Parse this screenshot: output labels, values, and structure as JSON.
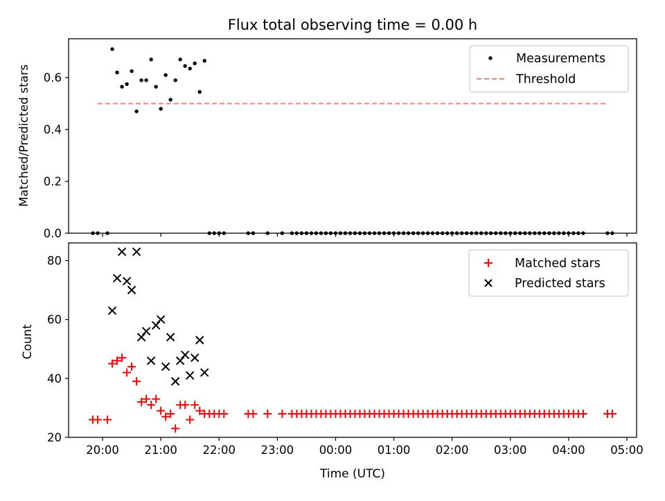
{
  "colors": {
    "measurement": "#000000",
    "threshold": "#ff7f7f",
    "matched": "#ff0000",
    "predicted": "#000000"
  },
  "chart_data": [
    {
      "type": "scatter",
      "title": "Flux total observing time = 0.00 h",
      "xlabel": "",
      "ylabel": "Matched/Predicted stars",
      "xlim": [
        "19:25",
        "05:10"
      ],
      "ylim": [
        0,
        0.75
      ],
      "yticks": [
        "0.0",
        "0.2",
        "0.4",
        "0.6"
      ],
      "legend": {
        "position": "top-right",
        "entries": [
          "Measurements",
          "Threshold"
        ]
      },
      "threshold": {
        "name": "Threshold",
        "value": 0.5,
        "x_start": "19:55",
        "x_end": "04:40"
      },
      "series": [
        {
          "name": "Measurements",
          "x": [
            "19:50",
            "19:55",
            "20:05",
            "20:10",
            "20:15",
            "20:20",
            "20:25",
            "20:30",
            "20:35",
            "20:40",
            "20:45",
            "20:50",
            "20:55",
            "21:00",
            "21:05",
            "21:10",
            "21:15",
            "21:20",
            "21:25",
            "21:30",
            "21:35",
            "21:40",
            "21:45",
            "21:50",
            "21:55",
            "22:00",
            "22:05",
            "22:30",
            "22:35",
            "22:50",
            "23:05",
            "23:15",
            "23:20",
            "23:25",
            "23:30",
            "23:35",
            "23:40",
            "23:45",
            "23:50",
            "23:55",
            "00:00",
            "00:05",
            "00:10",
            "00:15",
            "00:20",
            "00:25",
            "00:30",
            "00:35",
            "00:40",
            "00:45",
            "00:50",
            "00:55",
            "01:00",
            "01:05",
            "01:10",
            "01:15",
            "01:20",
            "01:25",
            "01:30",
            "01:35",
            "01:40",
            "01:45",
            "01:50",
            "01:55",
            "02:00",
            "02:05",
            "02:10",
            "02:15",
            "02:20",
            "02:25",
            "02:30",
            "02:35",
            "02:40",
            "02:45",
            "02:50",
            "02:55",
            "03:00",
            "03:05",
            "03:10",
            "03:15",
            "03:20",
            "03:25",
            "03:30",
            "03:35",
            "03:40",
            "03:45",
            "03:50",
            "03:55",
            "04:00",
            "04:05",
            "04:10",
            "04:15",
            "04:40",
            "04:45"
          ],
          "y": [
            0,
            0,
            0,
            0.71,
            0.62,
            0.565,
            0.575,
            0.625,
            0.47,
            0.59,
            0.59,
            0.67,
            0.565,
            0.48,
            0.61,
            0.515,
            0.59,
            0.67,
            0.645,
            0.635,
            0.655,
            0.545,
            0.665,
            0,
            0,
            0,
            0,
            0,
            0,
            0,
            0,
            0,
            0,
            0,
            0,
            0,
            0,
            0,
            0,
            0,
            0,
            0,
            0,
            0,
            0,
            0,
            0,
            0,
            0,
            0,
            0,
            0,
            0,
            0,
            0,
            0,
            0,
            0,
            0,
            0,
            0,
            0,
            0,
            0,
            0,
            0,
            0,
            0,
            0,
            0,
            0,
            0,
            0,
            0,
            0,
            0,
            0,
            0,
            0,
            0,
            0,
            0,
            0,
            0,
            0,
            0,
            0,
            0,
            0,
            0,
            0,
            0,
            0,
            0
          ]
        }
      ]
    },
    {
      "type": "scatter",
      "title": "",
      "xlabel": "Time (UTC)",
      "ylabel": "Count",
      "xlim": [
        "19:25",
        "05:10"
      ],
      "ylim": [
        20,
        86
      ],
      "xticks": [
        "20:00",
        "21:00",
        "22:00",
        "23:00",
        "00:00",
        "01:00",
        "02:00",
        "03:00",
        "04:00",
        "05:00"
      ],
      "yticks": [
        "20",
        "40",
        "60",
        "80"
      ],
      "legend": {
        "position": "top-right",
        "entries": [
          "Matched stars",
          "Predicted stars"
        ]
      },
      "series": [
        {
          "name": "Matched stars",
          "x": [
            "19:50",
            "19:55",
            "20:05",
            "20:10",
            "20:15",
            "20:20",
            "20:25",
            "20:30",
            "20:35",
            "20:40",
            "20:45",
            "20:50",
            "20:55",
            "21:00",
            "21:05",
            "21:10",
            "21:15",
            "21:20",
            "21:25",
            "21:30",
            "21:35",
            "21:40",
            "21:45",
            "21:50",
            "21:55",
            "22:00",
            "22:05",
            "22:30",
            "22:35",
            "22:50",
            "23:05",
            "23:15",
            "23:20",
            "23:25",
            "23:30",
            "23:35",
            "23:40",
            "23:45",
            "23:50",
            "23:55",
            "00:00",
            "00:05",
            "00:10",
            "00:15",
            "00:20",
            "00:25",
            "00:30",
            "00:35",
            "00:40",
            "00:45",
            "00:50",
            "00:55",
            "01:00",
            "01:05",
            "01:10",
            "01:15",
            "01:20",
            "01:25",
            "01:30",
            "01:35",
            "01:40",
            "01:45",
            "01:50",
            "01:55",
            "02:00",
            "02:05",
            "02:10",
            "02:15",
            "02:20",
            "02:25",
            "02:30",
            "02:35",
            "02:40",
            "02:45",
            "02:50",
            "02:55",
            "03:00",
            "03:05",
            "03:10",
            "03:15",
            "03:20",
            "03:25",
            "03:30",
            "03:35",
            "03:40",
            "03:45",
            "03:50",
            "03:55",
            "04:00",
            "04:05",
            "04:10",
            "04:15",
            "04:40",
            "04:45"
          ],
          "y": [
            26,
            26,
            26,
            45,
            46,
            47,
            42,
            44,
            39,
            32,
            33,
            31,
            33,
            29,
            27,
            28,
            23,
            31,
            31,
            26,
            31,
            29,
            28,
            28,
            28,
            28,
            28,
            28,
            28,
            28,
            28,
            28,
            28,
            28,
            28,
            28,
            28,
            28,
            28,
            28,
            28,
            28,
            28,
            28,
            28,
            28,
            28,
            28,
            28,
            28,
            28,
            28,
            28,
            28,
            28,
            28,
            28,
            28,
            28,
            28,
            28,
            28,
            28,
            28,
            28,
            28,
            28,
            28,
            28,
            28,
            28,
            28,
            28,
            28,
            28,
            28,
            28,
            28,
            28,
            28,
            28,
            28,
            28,
            28,
            28,
            28,
            28,
            28,
            28,
            28,
            28,
            28,
            28,
            28
          ]
        },
        {
          "name": "Predicted stars",
          "x": [
            "20:10",
            "20:15",
            "20:20",
            "20:25",
            "20:30",
            "20:35",
            "20:40",
            "20:45",
            "20:50",
            "20:55",
            "21:00",
            "21:05",
            "21:10",
            "21:15",
            "21:20",
            "21:25",
            "21:30",
            "21:35",
            "21:40",
            "21:45"
          ],
          "y": [
            63,
            74,
            83,
            73,
            70,
            83,
            54,
            56,
            46,
            58,
            60,
            44,
            54,
            39,
            46,
            48,
            41,
            47,
            53,
            42
          ]
        }
      ]
    }
  ]
}
